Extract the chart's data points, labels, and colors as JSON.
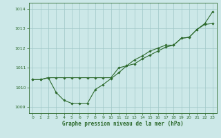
{
  "line1_x": [
    0,
    1,
    2,
    3,
    4,
    5,
    6,
    7,
    8,
    9,
    10,
    11,
    12,
    13,
    14,
    15,
    16,
    17,
    18,
    19,
    20,
    21,
    22,
    23
  ],
  "line1_y": [
    1010.4,
    1010.4,
    1010.5,
    1010.5,
    1010.5,
    1010.5,
    1010.5,
    1010.5,
    1010.5,
    1010.5,
    1010.5,
    1011.0,
    1011.1,
    1011.4,
    1011.6,
    1011.85,
    1012.0,
    1012.15,
    1012.15,
    1012.5,
    1012.55,
    1012.95,
    1013.2,
    1013.25
  ],
  "line2_x": [
    0,
    1,
    2,
    3,
    4,
    5,
    6,
    7,
    8,
    9,
    10,
    11,
    12,
    13,
    14,
    15,
    16,
    17,
    18,
    19,
    20,
    21,
    22,
    23
  ],
  "line2_y": [
    1010.4,
    1010.4,
    1010.5,
    1009.75,
    1009.35,
    1009.2,
    1009.2,
    1009.2,
    1009.9,
    1010.15,
    1010.45,
    1010.75,
    1011.1,
    1011.2,
    1011.45,
    1011.65,
    1011.85,
    1012.05,
    1012.15,
    1012.5,
    1012.55,
    1012.95,
    1013.25,
    1013.85
  ],
  "line_color": "#2d6a2d",
  "bg_color": "#cce8e8",
  "grid_color": "#a0c8c8",
  "xlabel": "Graphe pression niveau de la mer (hPa)",
  "ylim": [
    1008.7,
    1014.3
  ],
  "xlim": [
    -0.5,
    23.5
  ],
  "yticks": [
    1009,
    1010,
    1011,
    1012,
    1013,
    1014
  ],
  "xticks": [
    0,
    1,
    2,
    3,
    4,
    5,
    6,
    7,
    8,
    9,
    10,
    11,
    12,
    13,
    14,
    15,
    16,
    17,
    18,
    19,
    20,
    21,
    22,
    23
  ],
  "xtick_labels": [
    "0",
    "1",
    "2",
    "3",
    "4",
    "5",
    "6",
    "7",
    "8",
    "9",
    "10",
    "11",
    "12",
    "13",
    "14",
    "15",
    "16",
    "17",
    "18",
    "19",
    "20",
    "21",
    "22",
    "23"
  ]
}
